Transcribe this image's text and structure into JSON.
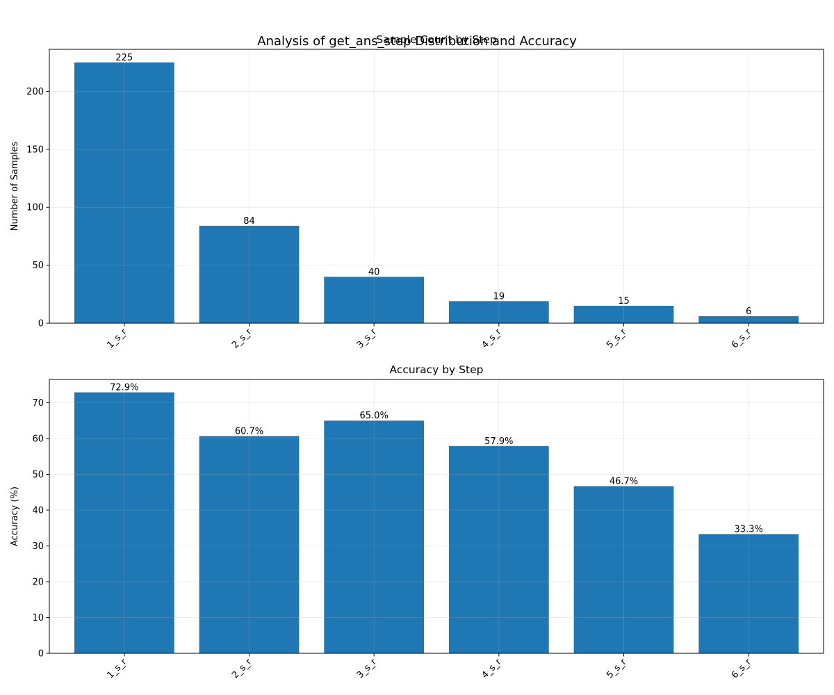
{
  "figure": {
    "suptitle": "Analysis of get_ans_step Distribution and Accuracy"
  },
  "chart_data": [
    {
      "type": "bar",
      "title": "Sample Count by Step",
      "xlabel": "",
      "ylabel": "Number of Samples",
      "categories": [
        "1_s_r",
        "2_s_r",
        "3_s_r",
        "4_s_r",
        "5_s_r",
        "6_s_r"
      ],
      "values": [
        225,
        84,
        40,
        19,
        15,
        6
      ],
      "value_labels": [
        "225",
        "84",
        "40",
        "19",
        "15",
        "6"
      ],
      "ylim": [
        0,
        236.25
      ],
      "yticks": [
        0,
        50,
        100,
        150,
        200
      ],
      "grid": true,
      "bar_color": "#1f77b4"
    },
    {
      "type": "bar",
      "title": "Accuracy by Step",
      "xlabel": "",
      "ylabel": "Accuracy (%)",
      "categories": [
        "1_s_r",
        "2_s_r",
        "3_s_r",
        "4_s_r",
        "5_s_r",
        "6_s_r"
      ],
      "values": [
        72.9,
        60.7,
        65.0,
        57.9,
        46.7,
        33.3
      ],
      "value_labels": [
        "72.9%",
        "60.7%",
        "65.0%",
        "57.9%",
        "46.7%",
        "33.3%"
      ],
      "ylim": [
        0,
        76.5
      ],
      "yticks": [
        0,
        10,
        20,
        30,
        40,
        50,
        60,
        70
      ],
      "grid": true,
      "bar_color": "#1f77b4"
    }
  ]
}
